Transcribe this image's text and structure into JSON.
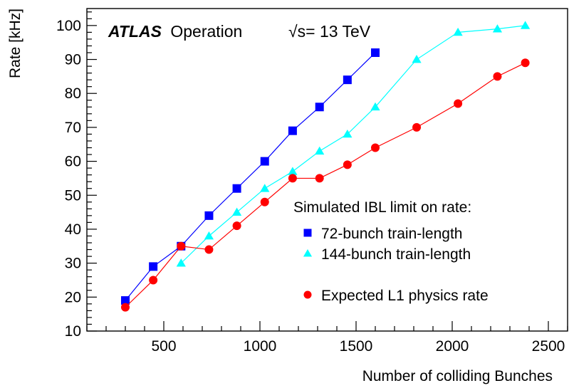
{
  "chart_data": {
    "type": "line",
    "title": "",
    "xlabel": "Number of colliding Bunches",
    "ylabel": "Rate [kHz]",
    "xlim": [
      100,
      2600
    ],
    "ylim": [
      10,
      105
    ],
    "xticks": [
      500,
      1000,
      1500,
      2000,
      2500
    ],
    "yticks": [
      10,
      20,
      30,
      40,
      50,
      60,
      70,
      80,
      90,
      100
    ],
    "grid": false,
    "legend_position": "center-right",
    "annotations": {
      "experiment": "ATLAS",
      "status": "Operation",
      "energy": "√s= 13 TeV"
    },
    "legend_title": "Simulated IBL limit on rate:",
    "series": [
      {
        "name": "72-bunch train-length",
        "color": "#0000ff",
        "marker": "square",
        "points": [
          [
            300,
            19
          ],
          [
            445,
            29
          ],
          [
            590,
            35
          ],
          [
            735,
            44
          ],
          [
            880,
            52
          ],
          [
            1025,
            60
          ],
          [
            1170,
            69
          ],
          [
            1310,
            76
          ],
          [
            1455,
            84
          ],
          [
            1600,
            92
          ]
        ]
      },
      {
        "name": "144-bunch train-length",
        "color": "#00ffff",
        "marker": "triangle",
        "points": [
          [
            590,
            30
          ],
          [
            735,
            38
          ],
          [
            880,
            45
          ],
          [
            1025,
            52
          ],
          [
            1170,
            57
          ],
          [
            1310,
            63
          ],
          [
            1455,
            68
          ],
          [
            1600,
            76
          ],
          [
            1815,
            90
          ],
          [
            2030,
            98
          ],
          [
            2235,
            99
          ],
          [
            2380,
            100
          ]
        ]
      },
      {
        "name": "Expected L1 physics rate",
        "color": "#ff0000",
        "marker": "circle",
        "points": [
          [
            300,
            17
          ],
          [
            445,
            25
          ],
          [
            590,
            35
          ],
          [
            735,
            34
          ],
          [
            880,
            41
          ],
          [
            1025,
            48
          ],
          [
            1170,
            55
          ],
          [
            1310,
            55
          ],
          [
            1455,
            59
          ],
          [
            1600,
            64
          ],
          [
            1815,
            70
          ],
          [
            2030,
            77
          ],
          [
            2235,
            85
          ],
          [
            2380,
            89
          ]
        ]
      }
    ]
  }
}
